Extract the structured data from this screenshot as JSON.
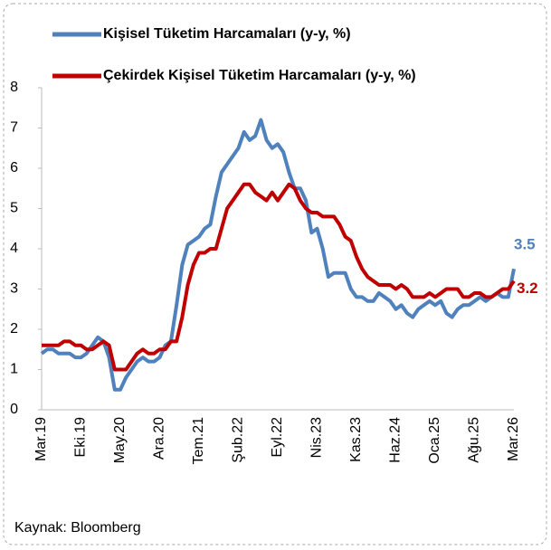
{
  "chart_data": {
    "type": "line",
    "categories": [
      "Mar.19",
      null,
      null,
      null,
      null,
      null,
      null,
      "Eki.19",
      null,
      null,
      null,
      null,
      null,
      null,
      "May.20",
      null,
      null,
      null,
      null,
      null,
      null,
      "Ara.20",
      null,
      null,
      null,
      null,
      null,
      null,
      "Tem.21",
      null,
      null,
      null,
      null,
      null,
      null,
      "Şub.22",
      null,
      null,
      null,
      null,
      null,
      null,
      "Eyl.22",
      null,
      null,
      null,
      null,
      null,
      null,
      "Nis.23",
      null,
      null,
      null,
      null,
      null,
      null,
      "Kas.23",
      null,
      null,
      null,
      null,
      null,
      null,
      "Haz.24",
      null,
      null,
      null,
      null,
      null,
      null,
      "Oca.25",
      null,
      null,
      null,
      null,
      null,
      null,
      "Ağu.25",
      null,
      null,
      null,
      null,
      null,
      null,
      "Mar.26"
    ],
    "series": [
      {
        "name": "Kişisel Tüketim Harcamaları (y-y, %)",
        "color": "#4f81bd",
        "values": [
          1.4,
          1.5,
          1.5,
          1.4,
          1.4,
          1.4,
          1.3,
          1.3,
          1.4,
          1.6,
          1.8,
          1.7,
          1.3,
          0.5,
          0.5,
          0.8,
          1.0,
          1.2,
          1.3,
          1.2,
          1.2,
          1.3,
          1.6,
          1.7,
          2.6,
          3.6,
          4.1,
          4.2,
          4.3,
          4.5,
          4.6,
          5.3,
          5.9,
          6.1,
          6.3,
          6.5,
          6.9,
          6.7,
          6.8,
          7.2,
          6.7,
          6.5,
          6.6,
          6.4,
          5.9,
          5.5,
          5.5,
          5.2,
          4.4,
          4.5,
          4.0,
          3.3,
          3.4,
          3.4,
          3.4,
          3.0,
          2.8,
          2.8,
          2.7,
          2.7,
          2.9,
          2.8,
          2.7,
          2.5,
          2.6,
          2.4,
          2.3,
          2.5,
          2.6,
          2.7,
          2.6,
          2.7,
          2.4,
          2.3,
          2.5,
          2.6,
          2.6,
          2.7,
          2.8,
          2.7,
          2.8,
          2.9,
          2.8,
          2.8,
          3.5
        ]
      },
      {
        "name": "Çekirdek Kişisel Tüketim Harcamaları (y-y, %)",
        "color": "#c00000",
        "values": [
          1.6,
          1.6,
          1.6,
          1.6,
          1.7,
          1.7,
          1.6,
          1.6,
          1.5,
          1.5,
          1.6,
          1.7,
          1.6,
          1.0,
          1.0,
          1.0,
          1.2,
          1.4,
          1.5,
          1.4,
          1.4,
          1.5,
          1.5,
          1.7,
          1.7,
          2.3,
          3.1,
          3.6,
          3.9,
          3.9,
          4.0,
          4.0,
          4.5,
          5.0,
          5.2,
          5.4,
          5.6,
          5.6,
          5.4,
          5.3,
          5.2,
          5.4,
          5.2,
          5.4,
          5.6,
          5.5,
          5.2,
          5.0,
          4.9,
          4.9,
          4.8,
          4.8,
          4.8,
          4.6,
          4.3,
          4.2,
          3.8,
          3.5,
          3.3,
          3.2,
          3.1,
          3.1,
          3.1,
          3.0,
          3.1,
          3.0,
          2.8,
          2.8,
          2.8,
          2.9,
          2.8,
          2.9,
          3.0,
          3.0,
          3.0,
          2.8,
          2.8,
          2.9,
          2.9,
          2.8,
          2.8,
          2.9,
          3.0,
          3.0,
          3.2
        ]
      }
    ],
    "ylim": [
      0,
      8
    ],
    "yticks": [
      0,
      1,
      2,
      3,
      4,
      5,
      6,
      7,
      8
    ],
    "grid": false,
    "legend": "top",
    "end_labels": true,
    "source": "Kaynak: Bloomberg"
  }
}
